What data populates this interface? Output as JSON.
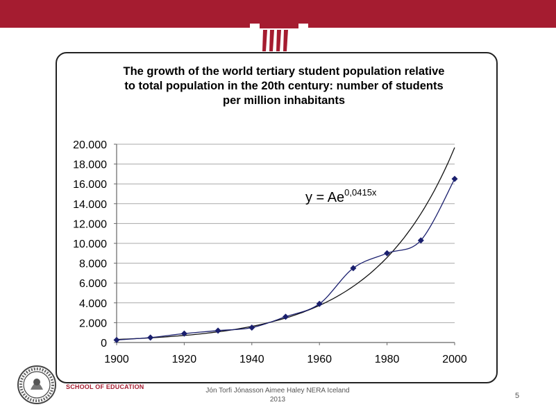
{
  "colors": {
    "brand": "#a51c30",
    "series": "#1a1f6e",
    "trend": "#111111",
    "grid": "#a8a8a8"
  },
  "chart_data": {
    "type": "line",
    "title_lines": [
      "The growth of the world tertiary  student population relative",
      "to total population in the 20th century: number of students",
      "per million inhabitants"
    ],
    "xlabel": "",
    "ylabel": "",
    "xlim": [
      1900,
      2000
    ],
    "ylim": [
      0,
      20000
    ],
    "x_ticks": [
      1900,
      1920,
      1940,
      1960,
      1980,
      2000
    ],
    "x_tick_labels": [
      "1900",
      "1920",
      "1940",
      "1960",
      "1980",
      "2000"
    ],
    "y_ticks": [
      0,
      2000,
      4000,
      6000,
      8000,
      10000,
      12000,
      14000,
      16000,
      18000,
      20000
    ],
    "y_tick_labels": [
      "0",
      "2.000",
      "4.000",
      "6.000",
      "8.000",
      "10.000",
      "12.000",
      "14.000",
      "16.000",
      "18.000",
      "20.000"
    ],
    "grid": "horizontal",
    "series": [
      {
        "x": [
          1900,
          1910,
          1920,
          1930,
          1940,
          1950,
          1960,
          1970,
          1980,
          1990,
          2000
        ],
        "values": [
          250,
          500,
          900,
          1200,
          1500,
          2600,
          3900,
          7500,
          9000,
          10300,
          16500
        ],
        "marker": "diamond"
      }
    ],
    "trendline": {
      "type": "exponential",
      "A": 310,
      "b": 0.0415,
      "x0": 1900,
      "label_main": "y = Ae",
      "label_exp": "0,0415x"
    }
  },
  "footer": {
    "school": "SCHOOL OF EDUCATION",
    "line1": "Jón Torfi Jónasson Aimee Haley NERA Iceland",
    "line2": "2013",
    "page_number": "5"
  }
}
